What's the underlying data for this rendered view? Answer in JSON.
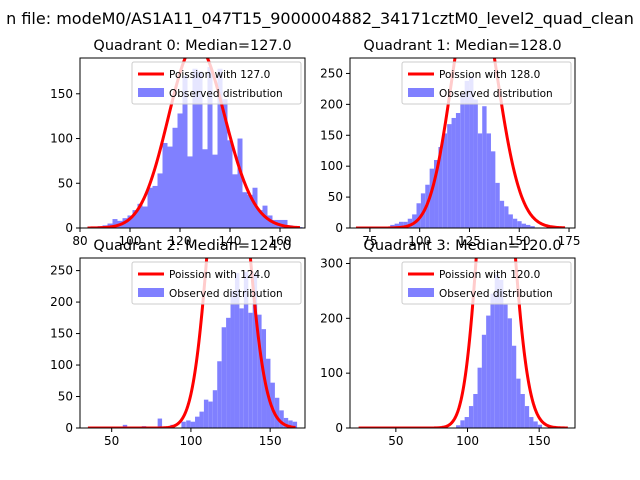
{
  "figure_title": "n file: modeM0/AS1A11_047T15_9000004882_34171cztM0_level2_quad_clean",
  "colors": {
    "bar": "#8080ff",
    "line": "#ff0000",
    "frame": "#000000"
  },
  "chart_data": [
    {
      "type": "bar",
      "title": "Quadrant 0: Median=127.0",
      "xlim": [
        80,
        170
      ],
      "ylim": [
        0,
        190
      ],
      "xticks": [
        80,
        100,
        120,
        140,
        160
      ],
      "yticks": [
        0,
        50,
        100,
        150
      ],
      "bins": {
        "start": 83,
        "width": 2,
        "counts": [
          1,
          1,
          2,
          3,
          5,
          10,
          8,
          11,
          14,
          20,
          27,
          24,
          45,
          47,
          61,
          95,
          91,
          112,
          128,
          170,
          80,
          178,
          175,
          88,
          180,
          82,
          178,
          144,
          98,
          60,
          100,
          40,
          37,
          45,
          20,
          25,
          14,
          9,
          9,
          9,
          3,
          1,
          1
        ]
      },
      "poisson": {
        "lambda": 127.0,
        "total": 2900,
        "bin_width": 2,
        "x_range": [
          83,
          168
        ]
      },
      "legend": {
        "line_label": "Poission with 127.0",
        "bar_label": "Observed distribution"
      }
    },
    {
      "type": "bar",
      "title": "Quadrant 1: Median=128.0",
      "xlim": [
        65,
        178
      ],
      "ylim": [
        0,
        275
      ],
      "xticks": [
        75,
        100,
        125,
        150,
        175
      ],
      "yticks": [
        0,
        50,
        100,
        150,
        200,
        250
      ],
      "bins": {
        "start": 83,
        "width": 2.2,
        "counts": [
          2,
          5,
          7,
          10,
          10,
          15,
          22,
          40,
          56,
          70,
          96,
          110,
          131,
          153,
          168,
          178,
          186,
          218,
          238,
          245,
          208,
          153,
          197,
          153,
          124,
          73,
          44,
          35,
          22,
          15,
          11,
          7,
          5,
          3
        ]
      },
      "poisson": {
        "lambda": 128.0,
        "total": 5200,
        "bin_width": 2.2,
        "x_range": [
          68,
          173
        ]
      },
      "legend": {
        "line_label": "Poission with 128.0",
        "bar_label": "Observed distribution"
      }
    },
    {
      "type": "bar",
      "title": "Quadrant 2: Median=124.0",
      "xlim": [
        30,
        172
      ],
      "ylim": [
        0,
        270
      ],
      "xticks": [
        50,
        100,
        150
      ],
      "yticks": [
        0,
        50,
        100,
        150,
        200,
        250
      ],
      "bins": {
        "start": 97,
        "width": 2.8,
        "counts": [
          12,
          10,
          18,
          26,
          45,
          42,
          60,
          106,
          160,
          175,
          218,
          246,
          190,
          248,
          183,
          245,
          180,
          157,
          110,
          72,
          48,
          28,
          16,
          12,
          10
        ]
      },
      "sparse_bins": [
        {
          "x": 37,
          "count": 2
        },
        {
          "x": 57,
          "count": 5
        },
        {
          "x": 69,
          "count": 3
        },
        {
          "x": 79,
          "count": 15
        },
        {
          "x": 87,
          "count": 5
        },
        {
          "x": 94,
          "count": 10
        },
        {
          "x": 161,
          "count": 2
        }
      ],
      "poisson": {
        "lambda": 124.0,
        "total": 5800,
        "bin_width": 2.8,
        "x_range": [
          35,
          166
        ]
      },
      "legend": {
        "line_label": "Poission with 124.0",
        "bar_label": "Observed distribution"
      }
    },
    {
      "type": "bar",
      "title": "Quadrant 3: Median=120.0",
      "xlim": [
        18,
        175
      ],
      "ylim": [
        0,
        310
      ],
      "xticks": [
        50,
        100,
        150
      ],
      "yticks": [
        0,
        100,
        200,
        300
      ],
      "bins": {
        "start": 92,
        "width": 3,
        "counts": [
          5,
          14,
          20,
          40,
          62,
          110,
          170,
          205,
          245,
          280,
          270,
          225,
          200,
          150,
          90,
          62,
          40,
          20,
          12,
          6
        ]
      },
      "sparse_bins": [
        {
          "x": 25,
          "count": 2
        },
        {
          "x": 68,
          "count": 2
        },
        {
          "x": 82,
          "count": 4
        }
      ],
      "poisson": {
        "lambda": 120.0,
        "total": 6200,
        "bin_width": 3,
        "x_range": [
          24,
          170
        ]
      },
      "legend": {
        "line_label": "Poission with 120.0",
        "bar_label": "Observed distribution"
      }
    }
  ]
}
